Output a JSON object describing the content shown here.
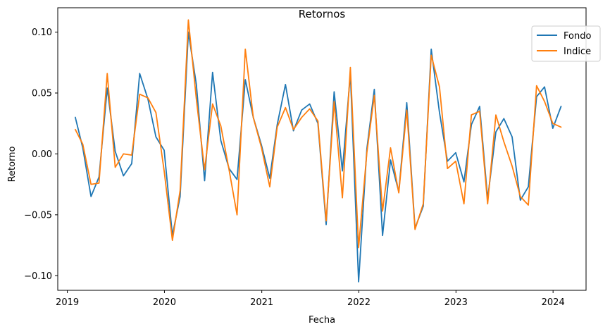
{
  "chart_data": {
    "type": "line",
    "title": "Retornos",
    "xlabel": "Fecha",
    "ylabel": "Retorno",
    "x_ticks": [
      "2019",
      "2020",
      "2021",
      "2022",
      "2023",
      "2024"
    ],
    "y_ticks": [
      "−0.10",
      "−0.05",
      "0.00",
      "0.05",
      "0.10"
    ],
    "y_tick_values": [
      -0.1,
      -0.05,
      0.0,
      0.05,
      0.1
    ],
    "ylim": [
      -0.112,
      0.12
    ],
    "xlim": [
      "2018-11-26",
      "2024-05-04"
    ],
    "grid": false,
    "legend_position": "top-right",
    "x": [
      "2019-01-31",
      "2019-02-28",
      "2019-03-31",
      "2019-04-30",
      "2019-05-31",
      "2019-06-30",
      "2019-07-31",
      "2019-08-31",
      "2019-09-30",
      "2019-10-31",
      "2019-11-30",
      "2019-12-31",
      "2020-01-31",
      "2020-02-29",
      "2020-03-31",
      "2020-04-30",
      "2020-05-31",
      "2020-06-30",
      "2020-07-31",
      "2020-08-31",
      "2020-09-30",
      "2020-10-31",
      "2020-11-30",
      "2020-12-31",
      "2021-01-31",
      "2021-02-28",
      "2021-03-31",
      "2021-04-30",
      "2021-05-31",
      "2021-06-30",
      "2021-07-31",
      "2021-08-31",
      "2021-09-30",
      "2021-10-31",
      "2021-11-30",
      "2021-12-31",
      "2022-01-31",
      "2022-02-28",
      "2022-03-31",
      "2022-04-30",
      "2022-05-31",
      "2022-06-30",
      "2022-07-31",
      "2022-08-31",
      "2022-09-30",
      "2022-10-31",
      "2022-11-30",
      "2022-12-31",
      "2023-01-31",
      "2023-02-28",
      "2023-03-31",
      "2023-04-30",
      "2023-05-31",
      "2023-06-30",
      "2023-07-31",
      "2023-08-31",
      "2023-09-30",
      "2023-10-31",
      "2023-11-30",
      "2023-12-31",
      "2024-01-31"
    ],
    "series": [
      {
        "name": "Fondo",
        "color": "#1f77b4",
        "values": [
          0.03,
          0.005,
          -0.035,
          -0.019,
          0.054,
          0.002,
          -0.018,
          -0.008,
          0.066,
          0.045,
          0.014,
          0.003,
          -0.067,
          -0.035,
          0.1,
          0.057,
          -0.022,
          0.067,
          0.011,
          -0.012,
          -0.021,
          0.061,
          0.03,
          0.007,
          -0.02,
          0.024,
          0.057,
          0.019,
          0.036,
          0.041,
          0.025,
          -0.058,
          0.051,
          -0.014,
          0.066,
          -0.105,
          0.004,
          0.053,
          -0.067,
          -0.005,
          -0.031,
          0.042,
          -0.061,
          -0.043,
          0.086,
          0.034,
          -0.006,
          0.001,
          -0.023,
          0.024,
          0.039,
          -0.037,
          0.018,
          0.029,
          0.014,
          -0.038,
          -0.027,
          0.047,
          0.055,
          0.021,
          0.039
        ]
      },
      {
        "name": "Indice",
        "color": "#ff7f0e",
        "values": [
          0.02,
          0.008,
          -0.025,
          -0.024,
          0.066,
          -0.011,
          0.0,
          -0.001,
          0.049,
          0.046,
          0.034,
          -0.014,
          -0.071,
          -0.03,
          0.11,
          0.045,
          -0.013,
          0.041,
          0.023,
          -0.013,
          -0.05,
          0.086,
          0.03,
          0.005,
          -0.027,
          0.022,
          0.038,
          0.02,
          0.03,
          0.037,
          0.027,
          -0.055,
          0.043,
          -0.036,
          0.071,
          -0.077,
          0.001,
          0.048,
          -0.047,
          0.005,
          -0.032,
          0.036,
          -0.062,
          -0.041,
          0.081,
          0.055,
          -0.012,
          -0.006,
          -0.041,
          0.032,
          0.035,
          -0.041,
          0.032,
          0.01,
          -0.01,
          -0.035,
          -0.042,
          0.056,
          0.043,
          0.025,
          0.022
        ]
      }
    ]
  }
}
